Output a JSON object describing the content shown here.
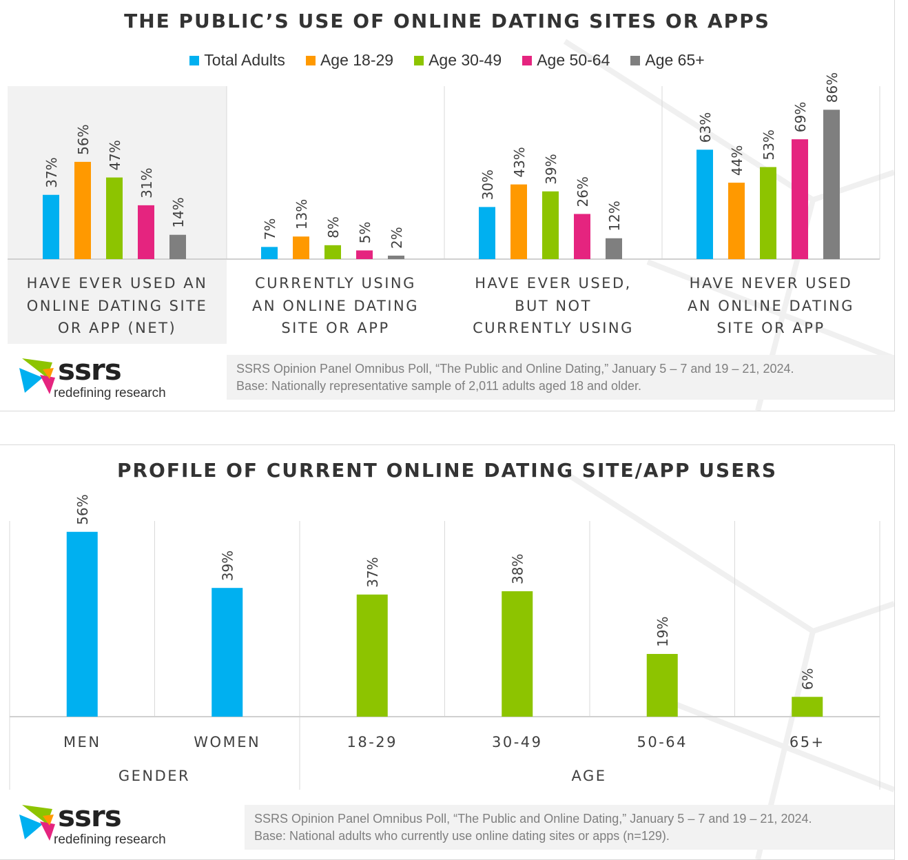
{
  "chart_data": [
    {
      "type": "bar",
      "title": "THE PUBLIC’S USE OF ONLINE DATING SITES OR APPS",
      "categories": [
        [
          "HAVE EVER USED AN",
          "ONLINE DATING SITE",
          "OR APP (NET)"
        ],
        [
          "CURRENTLY USING",
          "AN ONLINE DATING",
          "SITE OR APP"
        ],
        [
          "HAVE EVER USED,",
          "BUT NOT",
          "CURRENTLY USING"
        ],
        [
          "HAVE NEVER USED",
          "AN ONLINE DATING",
          "SITE OR APP"
        ]
      ],
      "series": [
        {
          "name": "Total Adults",
          "color": "#00b0f0",
          "values": [
            37,
            7,
            30,
            63
          ]
        },
        {
          "name": "Age 18-29",
          "color": "#ff9900",
          "values": [
            56,
            13,
            43,
            44
          ]
        },
        {
          "name": "Age 30-49",
          "color": "#8dc400",
          "values": [
            47,
            8,
            39,
            53
          ]
        },
        {
          "name": "Age 50-64",
          "color": "#e5247f",
          "values": [
            31,
            5,
            26,
            69
          ]
        },
        {
          "name": "Age 65+",
          "color": "#7f7f7f",
          "values": [
            14,
            2,
            12,
            86
          ]
        }
      ],
      "value_suffix": "%",
      "ylim": [
        0,
        100
      ],
      "legend": "top",
      "grid": false,
      "highlighted_category": 0
    },
    {
      "type": "bar",
      "title": "PROFILE OF CURRENT ONLINE DATING SITE/APP USERS",
      "categories": [
        "MEN",
        "WOMEN",
        "18-29",
        "30-49",
        "50-64",
        "65+"
      ],
      "values": [
        56,
        39,
        37,
        38,
        19,
        6
      ],
      "colors": [
        "#00b0f0",
        "#00b0f0",
        "#8dc400",
        "#8dc400",
        "#8dc400",
        "#8dc400"
      ],
      "groups": [
        {
          "label": "GENDER",
          "categories": [
            "MEN",
            "WOMEN"
          ]
        },
        {
          "label": "AGE",
          "categories": [
            "18-29",
            "30-49",
            "50-64",
            "65+"
          ]
        }
      ],
      "value_suffix": "%",
      "ylim": [
        0,
        60
      ],
      "grid": false
    }
  ],
  "logo": {
    "name": "ssrs",
    "tagline": "redefining research"
  },
  "source1": [
    "SSRS Opinion Panel Omnibus Poll, “The Public and Online Dating,” January 5 – 7 and 19 – 21, 2024.",
    "Base: Nationally representative sample of 2,011 adults aged 18 and older."
  ],
  "source2": [
    "SSRS Opinion Panel Omnibus Poll, “The Public and Online Dating,” January 5 – 7 and 19 – 21, 2024.",
    "Base: National adults who currently use online dating sites or apps (n=129)."
  ]
}
